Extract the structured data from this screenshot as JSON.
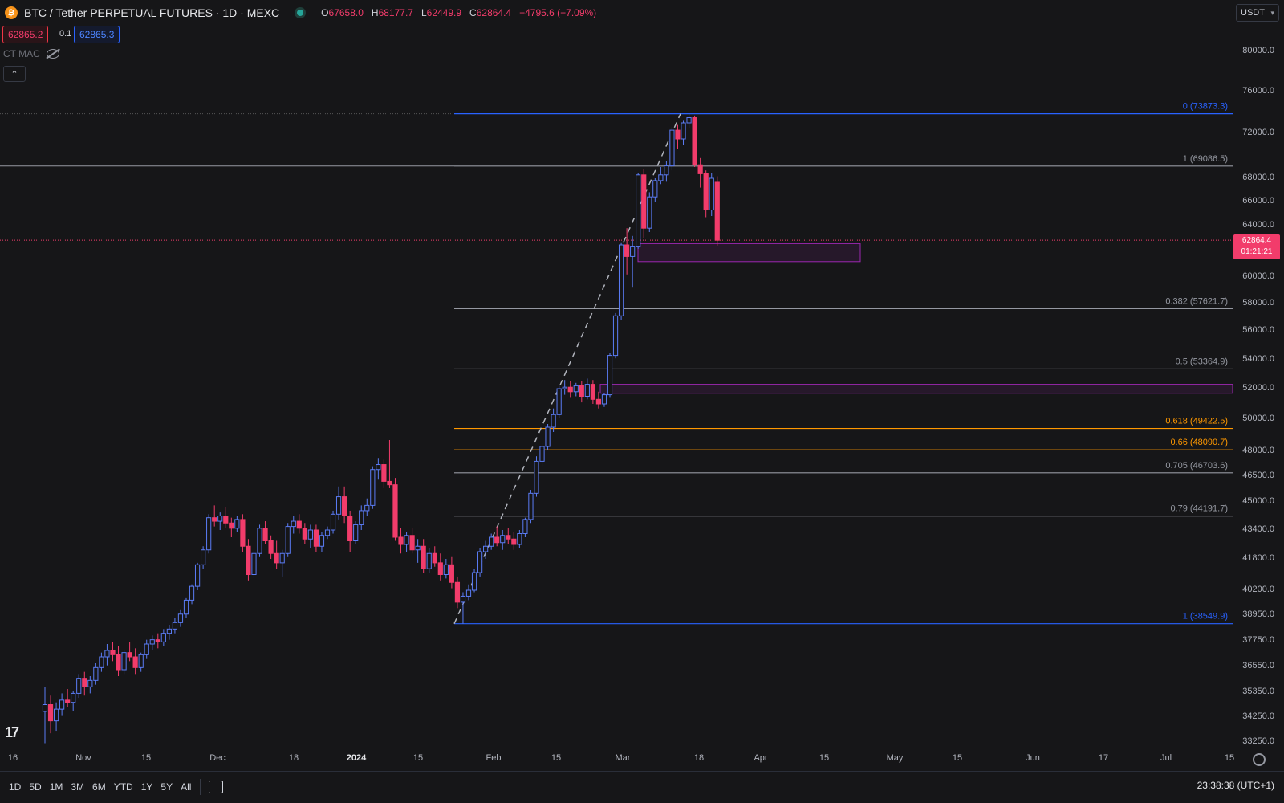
{
  "header": {
    "title": "BTC / Tether PERPETUAL FUTURES · 1D · MEXC",
    "o_key": "O",
    "o_val": "67658.0",
    "h_key": "H",
    "h_val": "68177.7",
    "l_key": "L",
    "l_val": "62449.9",
    "c_key": "C",
    "c_val": "62864.4",
    "change": "−4795.6 (−7.09%)"
  },
  "trade": {
    "sell": "62865.2",
    "spread": "0.1",
    "buy": "62865.3"
  },
  "indicator": {
    "name": "CT MAC"
  },
  "currency": {
    "label": "USDT"
  },
  "last_price": {
    "value": "62864.4",
    "countdown": "01:21:21"
  },
  "colors": {
    "up": "#5b7cf6",
    "down": "#f23c6b",
    "fib_blue": "#2962ff",
    "fib_gray": "#9598a1",
    "fib_orange": "#ff9800",
    "zone": "#9c27b0"
  },
  "footer": {
    "ranges": [
      "1D",
      "5D",
      "1M",
      "3M",
      "6M",
      "YTD",
      "1Y",
      "5Y",
      "All"
    ],
    "clock": "23:38:38 (UTC+1)"
  },
  "chart_data": {
    "type": "candlestick",
    "price_axis": [
      "80000.0",
      "76000.0",
      "72000.0",
      "68000.0",
      "66000.0",
      "64000.0",
      "60000.0",
      "58000.0",
      "56000.0",
      "54000.0",
      "52000.0",
      "50000.0",
      "48000.0",
      "46500.0",
      "45000.0",
      "43400.0",
      "41800.0",
      "40200.0",
      "38950.0",
      "37750.0",
      "36550.0",
      "35350.0",
      "34250.0",
      "33250.0"
    ],
    "time_axis": [
      {
        "label": "16",
        "bold": false
      },
      {
        "label": "Nov",
        "bold": false
      },
      {
        "label": "15",
        "bold": false
      },
      {
        "label": "Dec",
        "bold": false
      },
      {
        "label": "18",
        "bold": false
      },
      {
        "label": "2024",
        "bold": true
      },
      {
        "label": "15",
        "bold": false
      },
      {
        "label": "Feb",
        "bold": false
      },
      {
        "label": "15",
        "bold": false
      },
      {
        "label": "Mar",
        "bold": false
      },
      {
        "label": "18",
        "bold": false
      },
      {
        "label": "Apr",
        "bold": false
      },
      {
        "label": "15",
        "bold": false
      },
      {
        "label": "May",
        "bold": false
      },
      {
        "label": "15",
        "bold": false
      },
      {
        "label": "Jun",
        "bold": false
      },
      {
        "label": "17",
        "bold": false
      },
      {
        "label": "Jul",
        "bold": false
      },
      {
        "label": "15",
        "bold": false
      }
    ],
    "fib_levels": [
      {
        "label": "0 (73873.3)",
        "price": 73873.3,
        "color": "blue"
      },
      {
        "label": "1 (69086.5)",
        "price": 69086.5,
        "color": "gray"
      },
      {
        "label": "0.382 (57621.7)",
        "price": 57621.7,
        "color": "gray"
      },
      {
        "label": "0.5 (53364.9)",
        "price": 53364.9,
        "color": "gray"
      },
      {
        "label": "0.618 (49422.5)",
        "price": 49422.5,
        "color": "orange"
      },
      {
        "label": "0.66 (48090.7)",
        "price": 48090.7,
        "color": "orange"
      },
      {
        "label": "0.705 (46703.6)",
        "price": 46703.6,
        "color": "gray"
      },
      {
        "label": "0.79 (44191.7)",
        "price": 44191.7,
        "color": "gray"
      },
      {
        "label": "1 (38549.9)",
        "price": 38549.9,
        "color": "blue"
      }
    ],
    "zones": [
      {
        "top": 62600,
        "bottom": 61200
      },
      {
        "top": 52300,
        "bottom": 51700
      }
    ],
    "candles": [
      [
        34500,
        35600,
        33200,
        34800
      ],
      [
        34800,
        35200,
        33600,
        34100
      ],
      [
        34100,
        34900,
        33700,
        34600
      ],
      [
        34600,
        35300,
        34300,
        35000
      ],
      [
        35000,
        35500,
        34700,
        34900
      ],
      [
        34900,
        35400,
        34500,
        35300
      ],
      [
        35300,
        36200,
        35100,
        36000
      ],
      [
        36000,
        36300,
        35200,
        35600
      ],
      [
        35600,
        36100,
        35300,
        35900
      ],
      [
        35900,
        36700,
        35700,
        36500
      ],
      [
        36500,
        37200,
        36300,
        37000
      ],
      [
        37000,
        37600,
        36600,
        37300
      ],
      [
        37300,
        37700,
        36800,
        37100
      ],
      [
        37100,
        37500,
        36100,
        36400
      ],
      [
        36400,
        37300,
        36200,
        37200
      ],
      [
        37200,
        37700,
        36800,
        37000
      ],
      [
        37000,
        37400,
        36200,
        36500
      ],
      [
        36500,
        37200,
        36300,
        37100
      ],
      [
        37100,
        37800,
        36900,
        37600
      ],
      [
        37600,
        38000,
        37300,
        37800
      ],
      [
        37800,
        38100,
        37400,
        37700
      ],
      [
        37700,
        38300,
        37500,
        38100
      ],
      [
        38100,
        38500,
        37800,
        38300
      ],
      [
        38300,
        38800,
        38100,
        38600
      ],
      [
        38600,
        39200,
        38400,
        39000
      ],
      [
        39000,
        39800,
        38800,
        39700
      ],
      [
        39700,
        40500,
        39500,
        40400
      ],
      [
        40400,
        41600,
        40200,
        41500
      ],
      [
        41500,
        42500,
        41300,
        42300
      ],
      [
        42300,
        44300,
        42100,
        44100
      ],
      [
        44100,
        44800,
        43600,
        43900
      ],
      [
        43900,
        44400,
        43400,
        44200
      ],
      [
        44200,
        44700,
        43500,
        43800
      ],
      [
        43800,
        44100,
        43000,
        43500
      ],
      [
        43500,
        44200,
        43300,
        44000
      ],
      [
        44000,
        44300,
        42200,
        42500
      ],
      [
        42500,
        42900,
        40700,
        41000
      ],
      [
        41000,
        42300,
        40800,
        42100
      ],
      [
        42100,
        43700,
        41900,
        43500
      ],
      [
        43500,
        43900,
        42600,
        42800
      ],
      [
        42800,
        43100,
        41800,
        42100
      ],
      [
        42100,
        42800,
        41300,
        41600
      ],
      [
        41600,
        42300,
        40900,
        42100
      ],
      [
        42100,
        43800,
        41900,
        43600
      ],
      [
        43600,
        44200,
        43200,
        43900
      ],
      [
        43900,
        44300,
        43200,
        43500
      ],
      [
        43500,
        43800,
        42600,
        42900
      ],
      [
        42900,
        43700,
        42400,
        43400
      ],
      [
        43400,
        43700,
        42200,
        42500
      ],
      [
        42500,
        43300,
        42200,
        43100
      ],
      [
        43100,
        43600,
        42900,
        43400
      ],
      [
        43400,
        44500,
        43200,
        44300
      ],
      [
        44300,
        45900,
        44000,
        45300
      ],
      [
        45300,
        45900,
        43800,
        44200
      ],
      [
        44200,
        44500,
        42200,
        42800
      ],
      [
        42800,
        43900,
        42600,
        43700
      ],
      [
        43700,
        44800,
        43400,
        44500
      ],
      [
        44500,
        45200,
        44200,
        44800
      ],
      [
        44800,
        47100,
        44600,
        46900
      ],
      [
        46900,
        47600,
        46300,
        47200
      ],
      [
        47200,
        47500,
        45800,
        46200
      ],
      [
        46200,
        48700,
        45800,
        46000
      ],
      [
        46000,
        46400,
        42800,
        43000
      ],
      [
        43000,
        43500,
        42100,
        42600
      ],
      [
        42600,
        43300,
        42200,
        43100
      ],
      [
        43100,
        43500,
        42100,
        42300
      ],
      [
        42300,
        42900,
        41600,
        42500
      ],
      [
        42500,
        42900,
        41100,
        41300
      ],
      [
        41300,
        42400,
        41100,
        42100
      ],
      [
        42100,
        42500,
        41400,
        41600
      ],
      [
        41600,
        42100,
        40700,
        41000
      ],
      [
        41000,
        41800,
        40800,
        41500
      ],
      [
        41500,
        41900,
        40300,
        40600
      ],
      [
        40600,
        40900,
        39300,
        39600
      ],
      [
        39600,
        40100,
        38549,
        39900
      ],
      [
        39900,
        40500,
        39700,
        40200
      ],
      [
        40200,
        41300,
        40100,
        41100
      ],
      [
        41100,
        42400,
        40900,
        42200
      ],
      [
        42200,
        42800,
        41800,
        42500
      ],
      [
        42500,
        43200,
        42300,
        43000
      ],
      [
        43000,
        43600,
        42500,
        42700
      ],
      [
        42700,
        43400,
        42300,
        43100
      ],
      [
        43100,
        43500,
        42600,
        42900
      ],
      [
        42900,
        43300,
        42300,
        42600
      ],
      [
        42600,
        43400,
        42400,
        43200
      ],
      [
        43200,
        44100,
        43000,
        44000
      ],
      [
        44000,
        45700,
        43800,
        45500
      ],
      [
        45500,
        47700,
        45300,
        47400
      ],
      [
        47400,
        48500,
        47100,
        48300
      ],
      [
        48300,
        49700,
        48100,
        49500
      ],
      [
        49500,
        50700,
        49200,
        50300
      ],
      [
        50300,
        52200,
        50100,
        52000
      ],
      [
        52000,
        52600,
        51600,
        52100
      ],
      [
        52100,
        52500,
        51400,
        51800
      ],
      [
        51800,
        52400,
        51500,
        52200
      ],
      [
        52200,
        52500,
        51100,
        51500
      ],
      [
        51500,
        52700,
        51300,
        52300
      ],
      [
        52300,
        52600,
        51000,
        51300
      ],
      [
        51300,
        51800,
        50700,
        51000
      ],
      [
        51000,
        51700,
        50800,
        51600
      ],
      [
        51600,
        54500,
        51400,
        54300
      ],
      [
        54300,
        57300,
        54100,
        57100
      ],
      [
        57100,
        62700,
        56800,
        62500
      ],
      [
        62500,
        63800,
        60200,
        61600
      ],
      [
        61600,
        63200,
        59200,
        62400
      ],
      [
        62400,
        68500,
        62200,
        68300
      ],
      [
        68300,
        68800,
        63000,
        63800
      ],
      [
        63800,
        66800,
        63500,
        66400
      ],
      [
        66400,
        68000,
        66000,
        67800
      ],
      [
        67800,
        69000,
        67500,
        68300
      ],
      [
        68300,
        69500,
        67700,
        69100
      ],
      [
        69100,
        72600,
        68700,
        72300
      ],
      [
        72300,
        72800,
        70600,
        71500
      ],
      [
        71500,
        73200,
        71000,
        73000
      ],
      [
        73000,
        73873,
        72500,
        73500
      ],
      [
        73500,
        73700,
        69000,
        69200
      ],
      [
        69200,
        69800,
        67200,
        68400
      ],
      [
        68400,
        68700,
        64700,
        65300
      ],
      [
        65300,
        68500,
        64800,
        68000
      ],
      [
        67658,
        68177,
        62449,
        62864
      ]
    ],
    "last_price": 62864.4
  }
}
